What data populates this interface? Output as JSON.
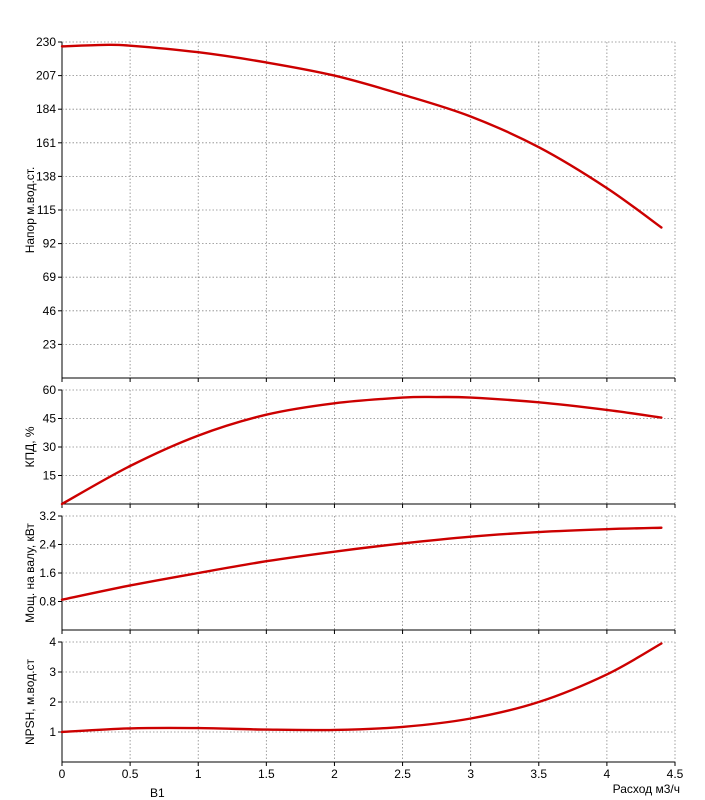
{
  "chart_data": [
    {
      "type": "line",
      "ylabel": "Напор м.вод.ст.",
      "ylim": [
        0,
        230
      ],
      "yticks": [
        23,
        46,
        69,
        92,
        115,
        138,
        161,
        184,
        207,
        230
      ],
      "grid": true,
      "series": [
        {
          "color": "#cc0000",
          "x": [
            0,
            0.3,
            0.5,
            1.0,
            1.5,
            2.0,
            2.5,
            3.0,
            3.5,
            4.0,
            4.4
          ],
          "y": [
            227,
            228,
            227.5,
            223,
            216,
            207,
            194,
            179,
            158,
            130,
            103
          ]
        }
      ]
    },
    {
      "type": "line",
      "ylabel": "КПД, %",
      "ylim": [
        0,
        60
      ],
      "yticks": [
        15,
        30,
        45,
        60
      ],
      "grid": true,
      "series": [
        {
          "color": "#cc0000",
          "x": [
            0,
            0.5,
            1.0,
            1.5,
            2.0,
            2.5,
            2.75,
            3.0,
            3.5,
            4.0,
            4.4
          ],
          "y": [
            0,
            20,
            36,
            47,
            53,
            56,
            56.3,
            56,
            53.5,
            49.5,
            45.5
          ]
        }
      ]
    },
    {
      "type": "line",
      "ylabel": "Мощ. на валу, кВт",
      "ylim": [
        0,
        3.2
      ],
      "yticks": [
        0.8,
        1.6,
        2.4,
        3.2
      ],
      "grid": true,
      "series": [
        {
          "color": "#cc0000",
          "x": [
            0,
            0.5,
            1.0,
            1.5,
            2.0,
            2.5,
            3.0,
            3.5,
            4.0,
            4.4
          ],
          "y": [
            0.85,
            1.25,
            1.6,
            1.93,
            2.2,
            2.43,
            2.62,
            2.75,
            2.83,
            2.87
          ]
        }
      ]
    },
    {
      "type": "line",
      "ylabel": "NPSH, м.вод.ст",
      "ylim": [
        0,
        4
      ],
      "yticks": [
        1,
        2,
        3,
        4
      ],
      "xlabel": "Расход м3/ч",
      "xlim": [
        0,
        4.5
      ],
      "xticks": [
        "0",
        "0.5",
        "1",
        "1.5",
        "2",
        "2.5",
        "3",
        "3.5",
        "4",
        "4.5"
      ],
      "grid": true,
      "series": [
        {
          "color": "#cc0000",
          "x": [
            0,
            0.5,
            1.0,
            1.5,
            2.0,
            2.5,
            3.0,
            3.5,
            4.0,
            4.4
          ],
          "y": [
            1.0,
            1.12,
            1.13,
            1.08,
            1.07,
            1.17,
            1.45,
            2.0,
            2.92,
            3.95
          ]
        }
      ]
    }
  ],
  "footer_label": "В1"
}
